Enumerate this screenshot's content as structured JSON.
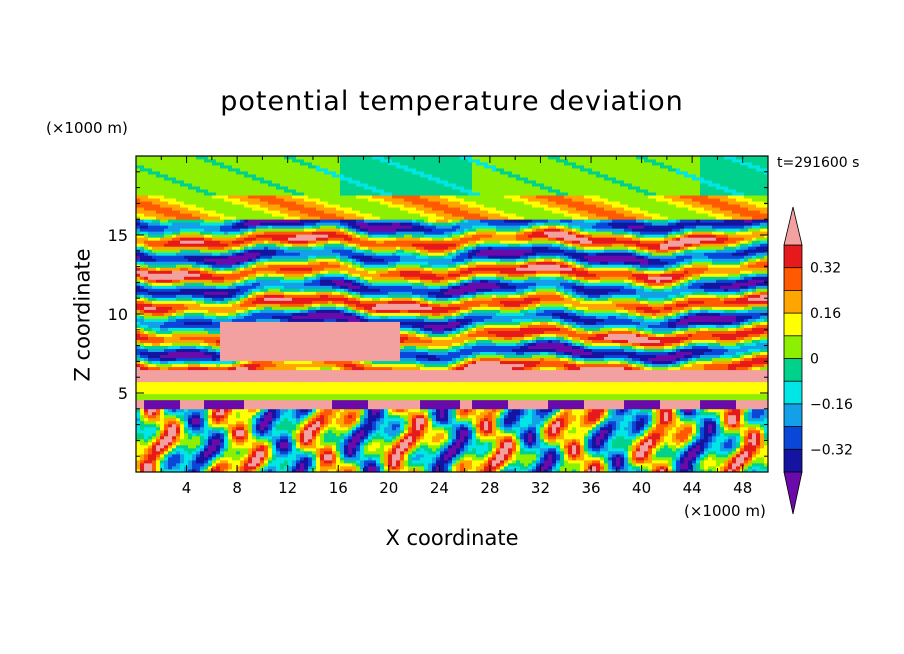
{
  "chart_data": {
    "type": "heatmap",
    "title": "potential temperature deviation",
    "xlabel": "X coordinate",
    "ylabel": "Z coordinate",
    "x_unit_label": "(×1000 m)",
    "y_unit_label": "(×1000 m)",
    "timestamp": "t=291600 s",
    "xlim": [
      0,
      50
    ],
    "ylim": [
      0,
      20
    ],
    "x_ticks": [
      "4",
      "8",
      "12",
      "16",
      "20",
      "24",
      "28",
      "32",
      "36",
      "40",
      "44",
      "48"
    ],
    "x_tick_values": [
      4,
      8,
      12,
      16,
      20,
      24,
      28,
      32,
      36,
      40,
      44,
      48
    ],
    "y_ticks": [
      "5",
      "10",
      "15"
    ],
    "y_tick_values": [
      5,
      10,
      15
    ],
    "colorbar": {
      "labels": [
        "0.32",
        "0.16",
        "0",
        "−0.16",
        "−0.32"
      ],
      "label_values": [
        0.32,
        0.16,
        0,
        -0.16,
        -0.32
      ],
      "levels": [
        -0.4,
        -0.32,
        -0.24,
        -0.16,
        -0.08,
        0,
        0.08,
        0.16,
        0.24,
        0.32,
        0.4
      ],
      "colors": [
        "#6a0aab",
        "#1414a0",
        "#0a46d8",
        "#14a0e8",
        "#00e6e6",
        "#00d28c",
        "#8cf000",
        "#ffff00",
        "#ffa500",
        "#ff5a00",
        "#e61a1a",
        "#f2a0a0"
      ],
      "extend": "both"
    },
    "bands": [
      {
        "z_range": [
          17.5,
          20
        ],
        "value": 0.04
      },
      {
        "z_range": [
          16,
          17.5
        ],
        "value": 0.15
      },
      {
        "z_range": [
          14,
          16
        ],
        "value": "mixed, -0.4 to 0.4"
      },
      {
        "z_range": [
          8,
          14
        ],
        "value": "mixed, -0.4 to 0.4"
      },
      {
        "z_range": [
          7,
          9.5
        ],
        "x_range": [
          6,
          21
        ],
        "value": 0.4
      },
      {
        "z_range": [
          5.8,
          6.5
        ],
        "value": 0.4
      },
      {
        "z_range": [
          5,
          5.8
        ],
        "value": 0.1
      },
      {
        "z_range": [
          4,
          4.5
        ],
        "value": 0.4
      },
      {
        "z_range": [
          0,
          4
        ],
        "value": "mixed, -0.4 to 0.4"
      }
    ]
  }
}
